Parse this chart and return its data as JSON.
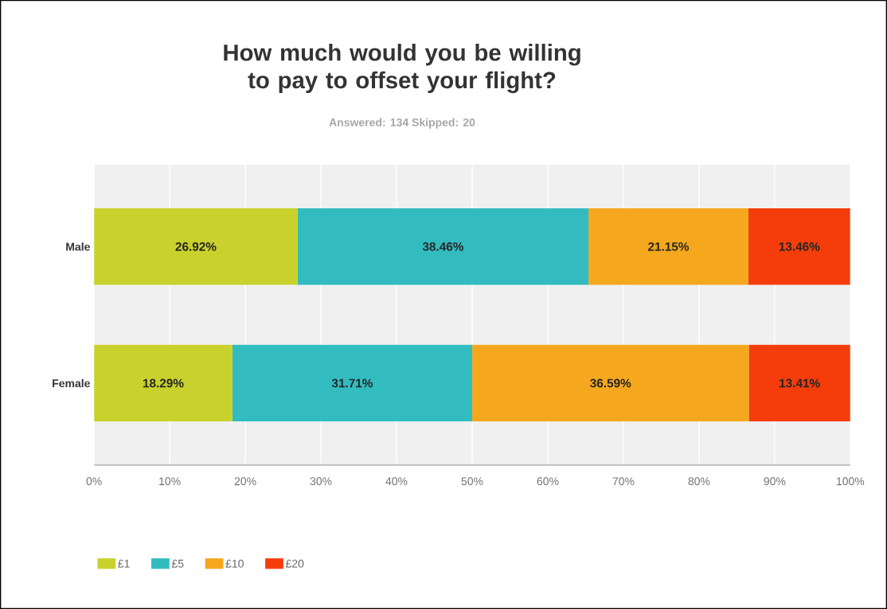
{
  "chart_data": {
    "type": "bar",
    "orientation": "horizontal",
    "stacked": true,
    "title": "How much would you be willing to pay to offset your flight?",
    "subtitle": "Answered: 134    Skipped: 20",
    "categories": [
      "Male",
      "Female"
    ],
    "series": [
      {
        "name": "£1",
        "color": "#c9d12c",
        "values": [
          26.92,
          18.29
        ],
        "value_labels": [
          "26.92%",
          "18.29%"
        ]
      },
      {
        "name": "£5",
        "color": "#33bcc0",
        "values": [
          38.46,
          31.71
        ],
        "value_labels": [
          "38.46%",
          "31.71%"
        ]
      },
      {
        "name": "£10",
        "color": "#f5a81e",
        "values": [
          21.15,
          36.59
        ],
        "value_labels": [
          "21.15%",
          "36.59%"
        ]
      },
      {
        "name": "£20",
        "color": "#f53d0c",
        "values": [
          13.46,
          13.41
        ],
        "value_labels": [
          "13.46%",
          "13.41%"
        ]
      }
    ],
    "xlim": [
      0,
      100
    ],
    "xticks": [
      {
        "value": 0,
        "label": "0%"
      },
      {
        "value": 10,
        "label": "10%"
      },
      {
        "value": 20,
        "label": "20%"
      },
      {
        "value": 30,
        "label": "30%"
      },
      {
        "value": 40,
        "label": "40%"
      },
      {
        "value": 50,
        "label": "50%"
      },
      {
        "value": 60,
        "label": "60%"
      },
      {
        "value": 70,
        "label": "70%"
      },
      {
        "value": 80,
        "label": "80%"
      },
      {
        "value": 90,
        "label": "90%"
      },
      {
        "value": 100,
        "label": "100%"
      }
    ],
    "grid": "x",
    "legend": "bottom left"
  }
}
